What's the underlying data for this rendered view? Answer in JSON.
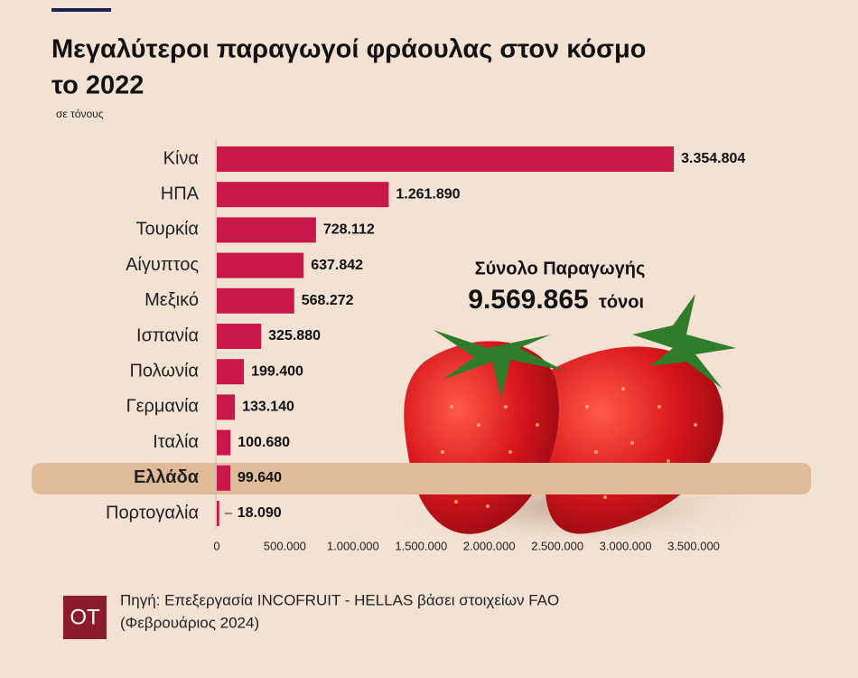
{
  "chart_data": {
    "type": "bar",
    "orientation": "horizontal",
    "title": [
      "Μεγαλύτεροι παραγωγοί φράουλας στον κόσμο",
      "το 2022"
    ],
    "subtitle": "σε τόνους",
    "categories": [
      "Κίνα",
      "ΗΠΑ",
      "Τουρκία",
      "Αίγυπτος",
      "Μεξικό",
      "Ισπανία",
      "Πολωνία",
      "Γερμανία",
      "Ιταλία",
      "Ελλάδα",
      "Πορτογαλία"
    ],
    "values": [
      3354804,
      1261890,
      728112,
      637842,
      568272,
      325880,
      199400,
      133140,
      100680,
      99640,
      18090
    ],
    "value_labels": [
      "3.354.804",
      "1.261.890",
      "728.112",
      "637.842",
      "568.272",
      "325.880",
      "199.400",
      "133.140",
      "100.680",
      "99.640",
      "18.090"
    ],
    "color": "#c8174a",
    "highlight": "Ελλάδα",
    "xlim": [
      0,
      3500000
    ],
    "xticks": [
      0,
      {
        "value": 500000,
        "label": "500.000"
      },
      {
        "value": 1000000,
        "label": "1.000.000"
      },
      {
        "value": 1500000,
        "label": "1.500.000"
      },
      {
        "value": 2000000,
        "label": "2.000.000"
      },
      {
        "value": 2500000,
        "label": "2.500.000"
      },
      {
        "value": 3000000,
        "label": "3.000.000"
      },
      {
        "value": 3500000,
        "label": "3.500.000"
      }
    ],
    "annotations": [
      "Σύνολο Παραγωγής",
      "9.569.865",
      "τόνοι"
    ]
  },
  "logo": "OT",
  "source": [
    "Πηγή: Επεξεργασία INCOFRUIT - HELLAS βάσει στοιχείων FAO",
    "(Φεβρουάριος 2024)"
  ]
}
